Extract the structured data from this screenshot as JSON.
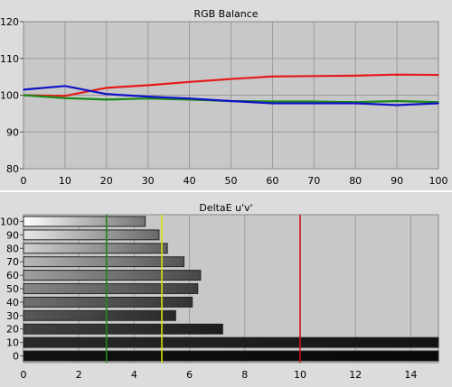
{
  "chart_data": [
    {
      "type": "line",
      "title": "RGB Balance",
      "x": [
        0,
        10,
        20,
        30,
        40,
        50,
        60,
        70,
        80,
        90,
        100
      ],
      "xlim": [
        0,
        100
      ],
      "ylim": [
        80,
        120
      ],
      "x_ticks": [
        "0",
        "10",
        "20",
        "30",
        "40",
        "50",
        "60",
        "70",
        "80",
        "90",
        "100"
      ],
      "y_ticks": [
        "80",
        "90",
        "100",
        "110",
        "120"
      ],
      "grid": true,
      "series": [
        {
          "color": "#e41a1c",
          "values": [
            100,
            99.8,
            102,
            102.7,
            103.6,
            104.4,
            105.1,
            105.2,
            105.3,
            105.6,
            105.5
          ]
        },
        {
          "color": "#1a8a1a",
          "values": [
            100,
            99.2,
            98.8,
            99.1,
            98.8,
            98.4,
            98.3,
            98.3,
            98.1,
            98.4,
            98.1
          ]
        },
        {
          "color": "#1010c8",
          "values": [
            101.5,
            102.5,
            100.3,
            99.6,
            99.1,
            98.4,
            97.8,
            97.8,
            97.8,
            97.3,
            97.8
          ]
        }
      ]
    },
    {
      "type": "bar",
      "orientation": "horizontal",
      "title": "DeltaE u'v'",
      "categories": [
        "100",
        "90",
        "80",
        "70",
        "60",
        "50",
        "40",
        "30",
        "20",
        "10",
        "0"
      ],
      "values": [
        4.4,
        4.9,
        5.2,
        5.8,
        6.4,
        6.3,
        6.1,
        5.5,
        7.2,
        15,
        15
      ],
      "xlim": [
        0,
        15
      ],
      "x_ticks": [
        "0",
        "2",
        "4",
        "6",
        "8",
        "10",
        "12",
        "14"
      ],
      "grid": true,
      "reference_lines": [
        {
          "value": 3,
          "color": "#1a8a1a"
        },
        {
          "value": 5,
          "color": "#e0e000"
        },
        {
          "value": 10,
          "color": "#d01010"
        }
      ]
    }
  ]
}
